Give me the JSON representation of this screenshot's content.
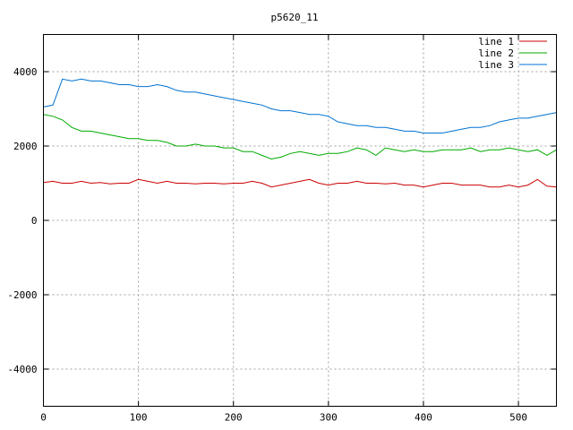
{
  "chart_data": {
    "type": "line",
    "title": "p5620_11",
    "xlabel": "",
    "ylabel": "",
    "xlim": [
      0,
      540
    ],
    "ylim": [
      -5000,
      5000
    ],
    "xticks": [
      0,
      100,
      200,
      300,
      400,
      500
    ],
    "yticks": [
      -4000,
      -2000,
      0,
      2000,
      4000
    ],
    "grid": true,
    "legend_position": "top-right",
    "x": [
      0,
      10,
      20,
      30,
      40,
      50,
      60,
      70,
      80,
      90,
      100,
      110,
      120,
      130,
      140,
      150,
      160,
      170,
      180,
      190,
      200,
      210,
      220,
      230,
      240,
      250,
      260,
      270,
      280,
      290,
      300,
      310,
      320,
      330,
      340,
      350,
      360,
      370,
      380,
      390,
      400,
      410,
      420,
      430,
      440,
      450,
      460,
      470,
      480,
      490,
      500,
      510,
      520,
      530,
      540
    ],
    "series": [
      {
        "name": "line 1",
        "color": "#cc0000",
        "values": [
          1020,
          1050,
          1000,
          1000,
          1050,
          1000,
          1020,
          980,
          1000,
          1000,
          1100,
          1050,
          1000,
          1050,
          1000,
          1000,
          980,
          1000,
          1000,
          980,
          1000,
          1000,
          1050,
          1000,
          900,
          950,
          1000,
          1050,
          1100,
          1000,
          950,
          1000,
          1000,
          1050,
          1000,
          1000,
          980,
          1000,
          950,
          950,
          900,
          950,
          1000,
          1000,
          950,
          950,
          950,
          900,
          900,
          950,
          900,
          950,
          1100,
          920,
          900
        ]
      },
      {
        "name": "line 2",
        "color": "#00aa00",
        "values": [
          2850,
          2800,
          2700,
          2500,
          2400,
          2400,
          2350,
          2300,
          2250,
          2200,
          2200,
          2150,
          2150,
          2100,
          2000,
          2000,
          2050,
          2000,
          2000,
          1950,
          1950,
          1850,
          1850,
          1750,
          1650,
          1700,
          1800,
          1850,
          1800,
          1750,
          1800,
          1800,
          1850,
          1950,
          1900,
          1750,
          1950,
          1900,
          1850,
          1900,
          1850,
          1850,
          1900,
          1900,
          1900,
          1950,
          1850,
          1900,
          1900,
          1950,
          1900,
          1850,
          1900,
          1750,
          1900
        ]
      },
      {
        "name": "line 3",
        "color": "#0072d0",
        "values": [
          3050,
          3100,
          3800,
          3750,
          3800,
          3750,
          3750,
          3700,
          3650,
          3650,
          3600,
          3600,
          3650,
          3600,
          3500,
          3450,
          3450,
          3400,
          3350,
          3300,
          3250,
          3200,
          3150,
          3100,
          3000,
          2950,
          2950,
          2900,
          2850,
          2850,
          2800,
          2650,
          2600,
          2550,
          2550,
          2500,
          2500,
          2450,
          2400,
          2400,
          2350,
          2350,
          2350,
          2400,
          2450,
          2500,
          2500,
          2550,
          2650,
          2700,
          2750,
          2750,
          2800,
          2850,
          2900
        ]
      }
    ]
  }
}
